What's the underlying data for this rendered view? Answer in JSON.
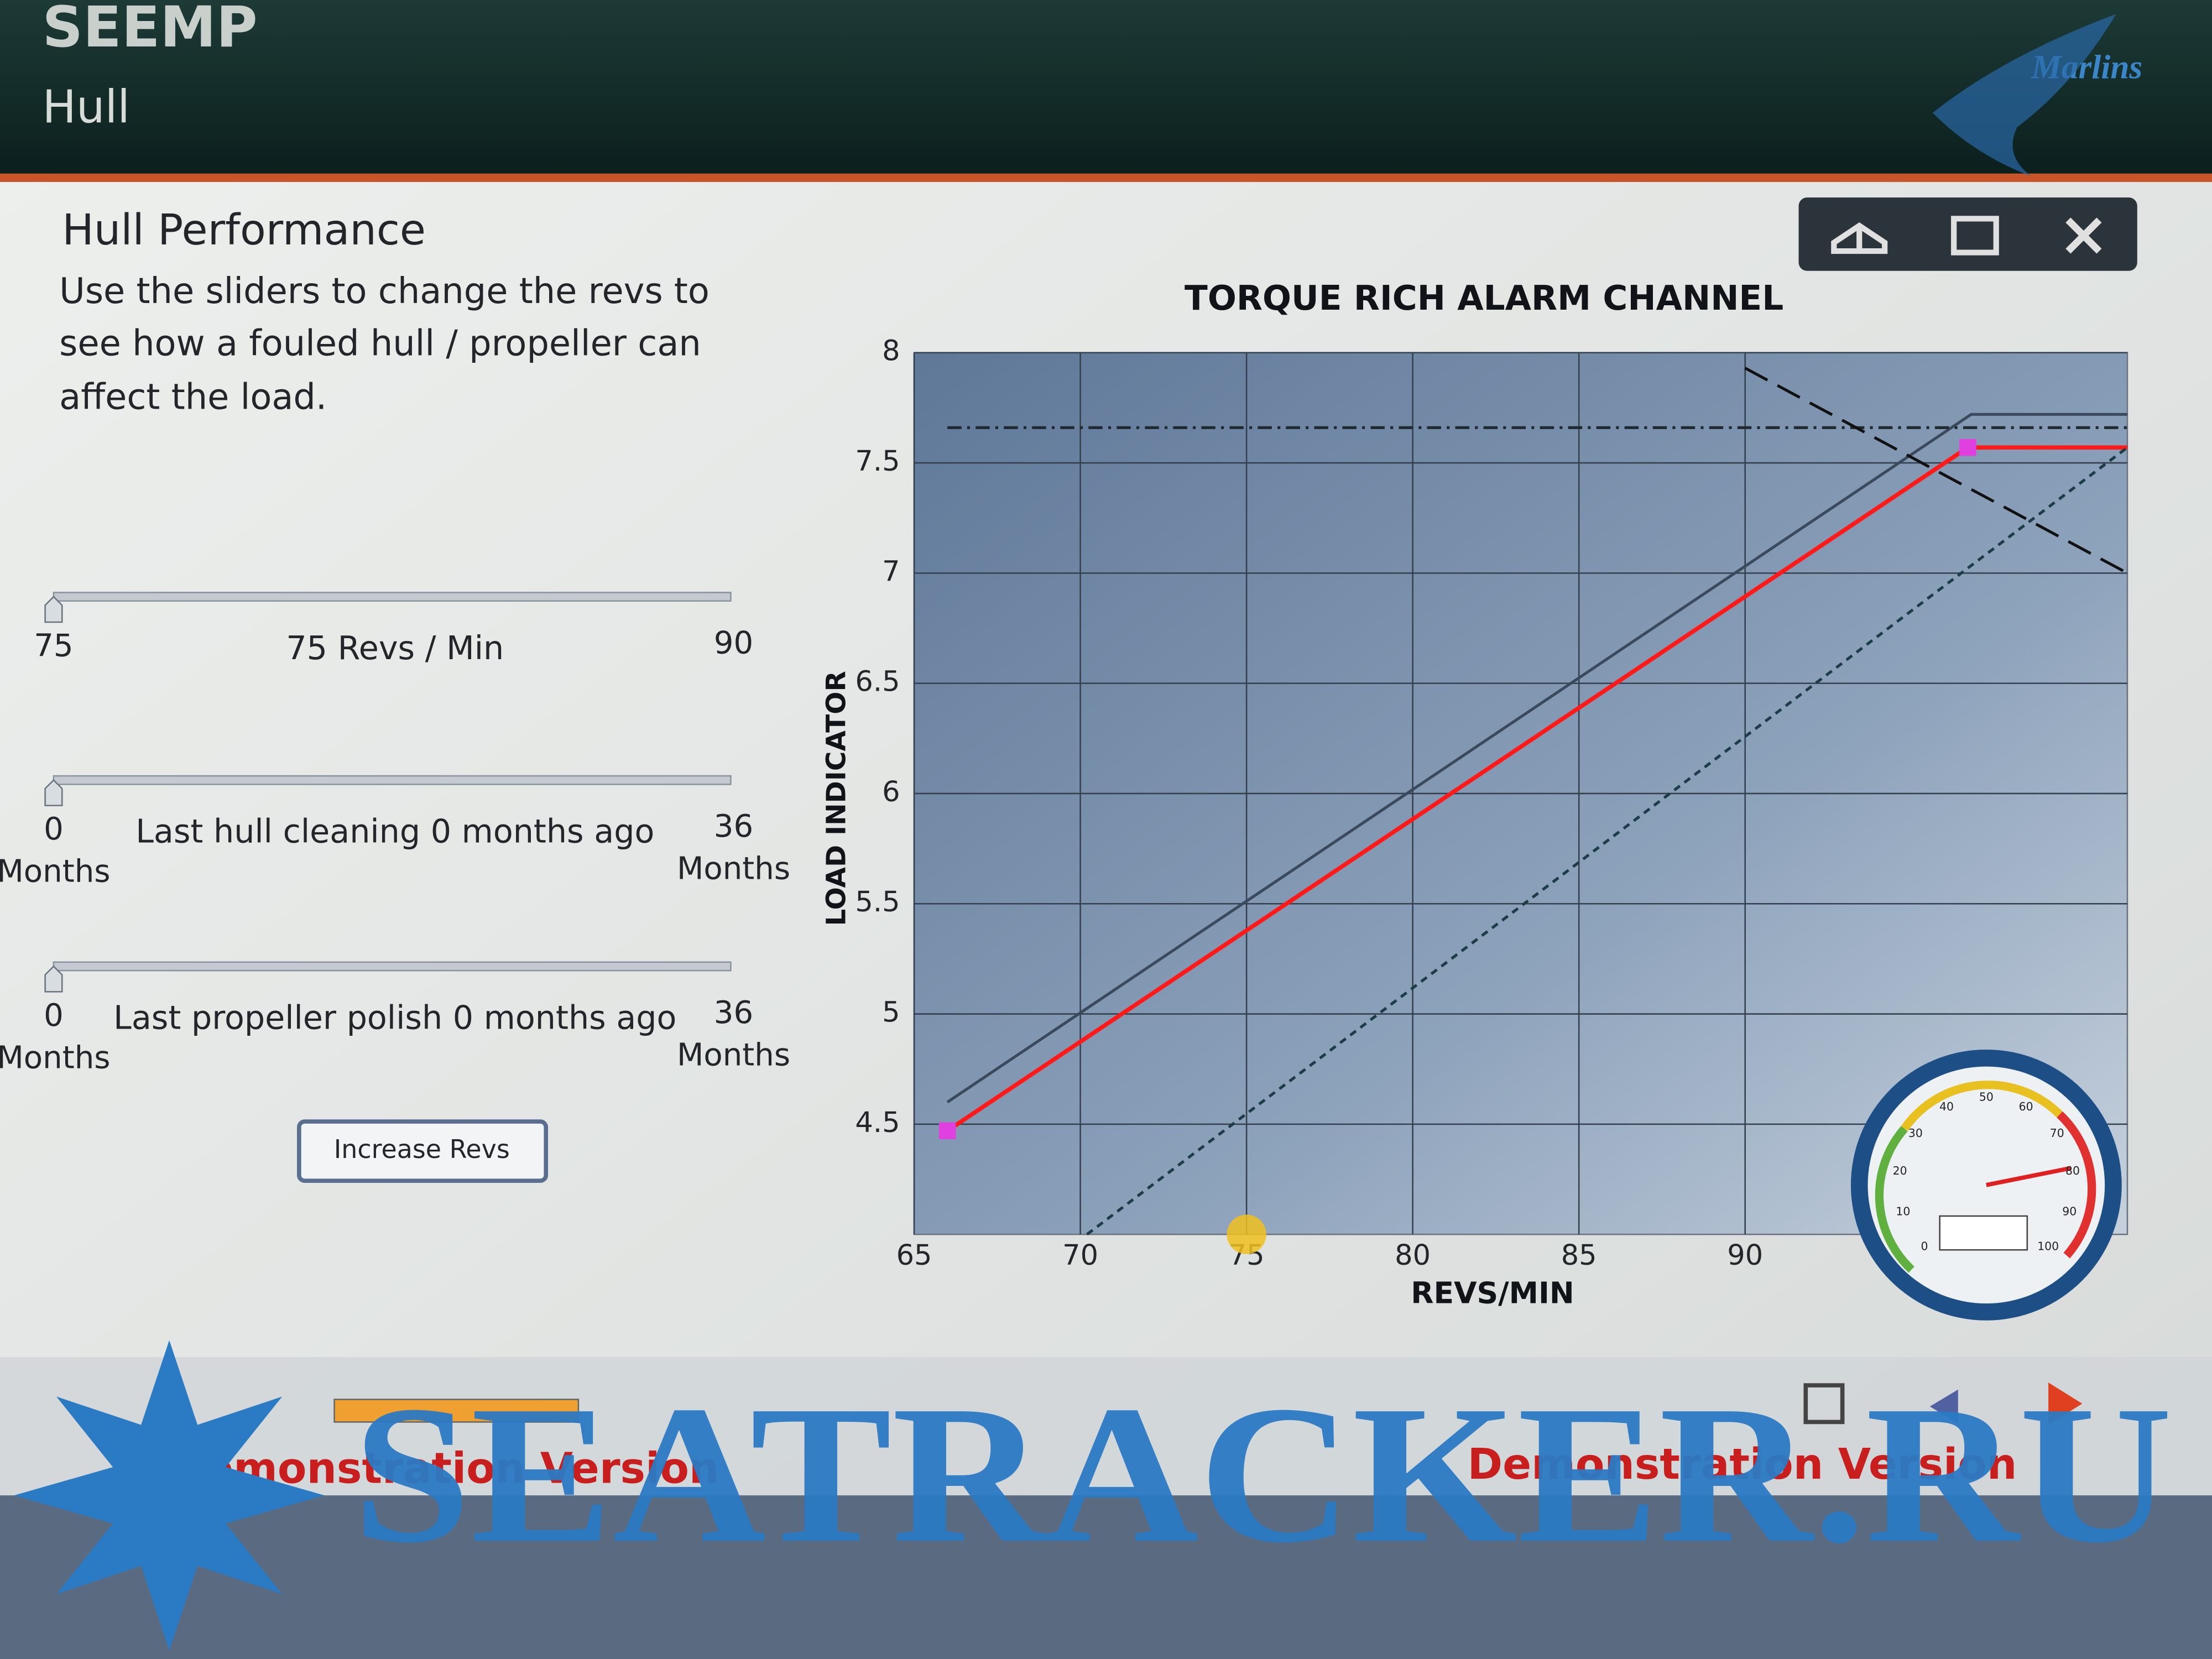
{
  "header": {
    "title": "SEEMP",
    "subtitle": "Hull",
    "logo": "Marlins"
  },
  "panel": {
    "title": "Hull Performance",
    "instructions": [
      "Use the sliders to change the revs to",
      "see how a fouled hull / propeller can",
      "affect the load."
    ],
    "sliders": [
      {
        "min": [
          "75"
        ],
        "max": [
          "90"
        ],
        "caption": "75 Revs / Min"
      },
      {
        "min": [
          "0",
          "Months"
        ],
        "max": [
          "36",
          "Months"
        ],
        "caption": "Last hull cleaning 0 months ago"
      },
      {
        "min": [
          "0",
          "Months"
        ],
        "max": [
          "36",
          "Months"
        ],
        "caption": "Last propeller polish 0 months ago"
      }
    ],
    "button": "Increase Revs"
  },
  "chart_data": {
    "type": "line",
    "title": "TORQUE RICH ALARM CHANNEL",
    "x_label": "REVS/MIN",
    "y_label": "LOAD INDICATOR",
    "xlim": [
      65,
      101.5
    ],
    "ylim": [
      4,
      8
    ],
    "xticks": [
      65,
      70,
      75,
      80,
      85,
      90
    ],
    "yticks": [
      4.5,
      5,
      5.5,
      6,
      6.5,
      7,
      7.5,
      8
    ],
    "grid": true,
    "current_x": 75,
    "series": [
      {
        "color": "#3a4a5c",
        "style": "solid",
        "x": [
          66,
          96.8,
          101.5
        ],
        "values": [
          4.6,
          7.72,
          7.72
        ]
      },
      {
        "color": "#ff1a1a",
        "style": "solid",
        "x": [
          66,
          96.7,
          101.5
        ],
        "values": [
          4.47,
          7.57,
          7.57
        ],
        "marker_color": "#e040e0"
      },
      {
        "color": "#1c3c48",
        "style": "dashed",
        "x": [
          70.2,
          101.5
        ],
        "values": [
          4,
          7.57
        ]
      },
      {
        "color": "#202830",
        "style": "dashdot",
        "x": [
          66,
          101.5
        ],
        "values": [
          7.66,
          7.66
        ]
      },
      {
        "color": "#111111",
        "style": "longdash",
        "x": [
          90,
          101.5
        ],
        "values": [
          7.93,
          7
        ]
      }
    ]
  },
  "gauge": {
    "ticks": [
      0,
      10,
      20,
      30,
      40,
      50,
      60,
      70,
      80,
      90,
      100
    ]
  },
  "footer": {
    "notice_left": "Demonstration Version",
    "notice_right": "Demonstration Version",
    "watermark": "SEATRACKER.RU"
  }
}
